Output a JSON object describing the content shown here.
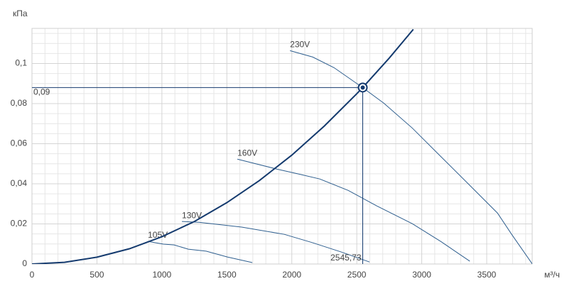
{
  "chart_data": {
    "type": "line",
    "x_label": "м³/ч",
    "y_label": "кПа",
    "xlim": [
      0,
      3850
    ],
    "ylim": [
      0,
      0.1175
    ],
    "xticks": [
      0,
      500,
      1000,
      1500,
      2000,
      2500,
      3000,
      3500
    ],
    "yticks": [
      0,
      {
        "value": 0.02,
        "label": "0,02"
      },
      {
        "value": 0.04,
        "label": "0,04"
      },
      {
        "value": 0.06,
        "label": "0,06"
      },
      {
        "value": 0.08,
        "label": "0,08"
      },
      {
        "value": 0.1,
        "label": "0,1"
      }
    ],
    "grid": true,
    "system_curve": {
      "color": "#143a6e",
      "x": [
        0,
        250,
        500,
        750,
        1000,
        1250,
        1500,
        1750,
        2000,
        2250,
        2500,
        2545.73,
        2750,
        2935
      ],
      "values": [
        0,
        0.00085,
        0.0034,
        0.0076,
        0.0136,
        0.0212,
        0.0306,
        0.0416,
        0.0543,
        0.0688,
        0.0849,
        0.088,
        0.1027,
        0.117
      ]
    },
    "series": [
      {
        "name": "230V",
        "color": "#2f5f8f",
        "x": [
          1986,
          2161,
          2325,
          2538,
          2708,
          2927,
          3145,
          3364,
          3583,
          3692,
          3851
        ],
        "values": [
          0.1064,
          0.1032,
          0.0979,
          0.0883,
          0.0802,
          0.0678,
          0.0537,
          0.0396,
          0.0254,
          0.0148,
          0
        ]
      },
      {
        "name": "160V",
        "color": "#2f5f8f",
        "x": [
          1581,
          1887,
          2051,
          2215,
          2434,
          2653,
          2927,
          3145,
          3370
        ],
        "values": [
          0.0523,
          0.0473,
          0.0449,
          0.0424,
          0.0367,
          0.029,
          0.0201,
          0.0113,
          0.0014
        ]
      },
      {
        "name": "130V",
        "color": "#2f5f8f",
        "x": [
          1154,
          1286,
          1614,
          1942,
          2161,
          2380,
          2598
        ],
        "values": [
          0.0212,
          0.0208,
          0.0184,
          0.0148,
          0.0106,
          0.006,
          0.001
        ]
      },
      {
        "name": "105V",
        "color": "#2f5f8f",
        "x": [
          892,
          1012,
          1094,
          1203,
          1340,
          1504,
          1696
        ],
        "values": [
          0.0113,
          0.0099,
          0.0095,
          0.0074,
          0.0064,
          0.0035,
          0.0007
        ]
      }
    ],
    "operating_point": {
      "x": 2545.73,
      "y": 0.088,
      "x_label": "2545,73",
      "y_label": "0,09",
      "color": "#143a6e"
    }
  }
}
